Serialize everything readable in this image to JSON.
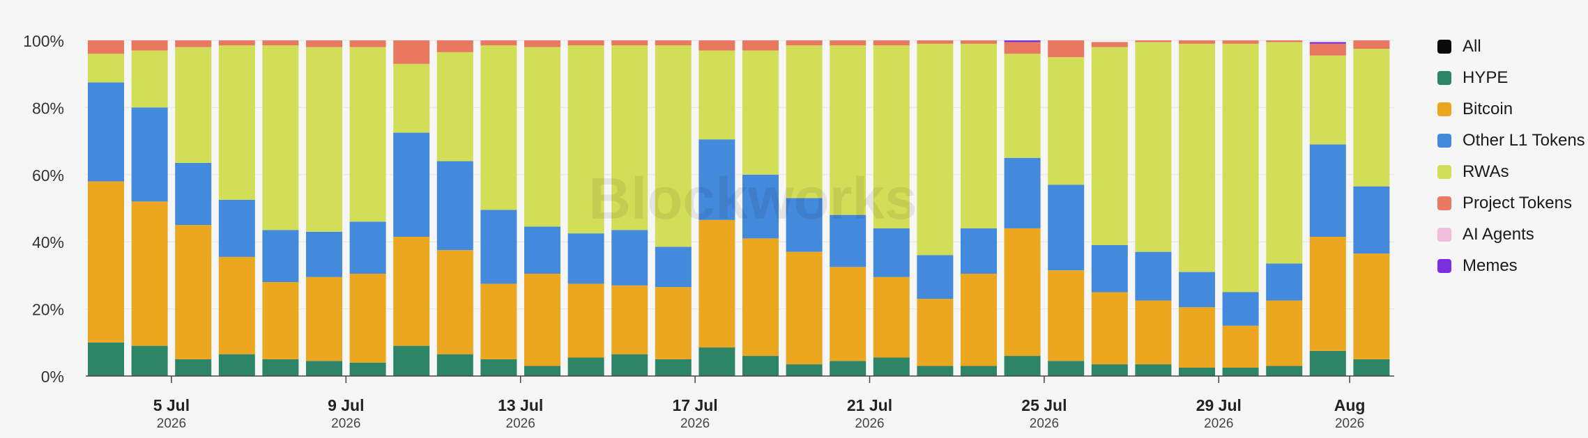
{
  "chart_data": {
    "type": "bar",
    "stacked": true,
    "normalized": true,
    "y_ticks": [
      "0%",
      "20%",
      "40%",
      "60%",
      "80%",
      "100%"
    ],
    "ylim": [
      0,
      100
    ],
    "x_ticks": [
      {
        "index": 1,
        "label": "5 Jul",
        "year": "2026"
      },
      {
        "index": 5,
        "label": "9 Jul",
        "year": "2026"
      },
      {
        "index": 9,
        "label": "13 Jul",
        "year": "2026"
      },
      {
        "index": 13,
        "label": "17 Jul",
        "year": "2026"
      },
      {
        "index": 17,
        "label": "21 Jul",
        "year": "2026"
      },
      {
        "index": 21,
        "label": "25 Jul",
        "year": "2026"
      },
      {
        "index": 25,
        "label": "29 Jul",
        "year": "2026"
      },
      {
        "index": 28,
        "label": "Aug",
        "year": "2026"
      }
    ],
    "categories": [
      "3 Jul 2026",
      "4 Jul 2026",
      "5 Jul 2026",
      "6 Jul 2026",
      "7 Jul 2026",
      "8 Jul 2026",
      "9 Jul 2026",
      "10 Jul 2026",
      "11 Jul 2026",
      "12 Jul 2026",
      "13 Jul 2026",
      "14 Jul 2026",
      "15 Jul 2026",
      "16 Jul 2026",
      "17 Jul 2026",
      "18 Jul 2026",
      "19 Jul 2026",
      "20 Jul 2026",
      "21 Jul 2026",
      "22 Jul 2026",
      "23 Jul 2026",
      "24 Jul 2026",
      "25 Jul 2026",
      "26 Jul 2026",
      "27 Jul 2026",
      "28 Jul 2026",
      "29 Jul 2026",
      "30 Jul 2026",
      "31 Jul 2026",
      "1 Aug 2026",
      "2 Aug 2026",
      "3 Aug 2026"
    ],
    "series": [
      {
        "name": "HYPE",
        "color": "#2e8467",
        "values": [
          10,
          9,
          5,
          6.5,
          5,
          4.5,
          4,
          9,
          6.5,
          5,
          3,
          5.5,
          6.5,
          5,
          8.5,
          6,
          3.5,
          4.5,
          5.5,
          3,
          3,
          6,
          4.5,
          3.5,
          3.5,
          2.5,
          2.5,
          3,
          7.5,
          5,
          0,
          0
        ]
      },
      {
        "name": "Bitcoin",
        "color": "#eaa71f",
        "values": [
          48,
          43,
          40,
          29,
          23,
          25,
          26.5,
          32.5,
          31,
          22.5,
          27.5,
          22,
          20.5,
          21.5,
          38,
          35,
          33.5,
          28,
          24,
          20,
          27.5,
          38,
          27,
          21.5,
          19,
          18,
          12.5,
          19.5,
          34,
          31.5,
          0,
          0
        ]
      },
      {
        "name": "Other L1 Tokens",
        "color": "#4389dc",
        "values": [
          29.5,
          28,
          18.5,
          17,
          15.5,
          13.5,
          15.5,
          31,
          26.5,
          22,
          14,
          15,
          16.5,
          12,
          24,
          19,
          16,
          15.5,
          14.5,
          13,
          13.5,
          21,
          25.5,
          14,
          14.5,
          10.5,
          10,
          11,
          27.5,
          20,
          0,
          0
        ]
      },
      {
        "name": "RWAs",
        "color": "#d3de58",
        "values": [
          8.5,
          17,
          34.5,
          46,
          55,
          55,
          52,
          20.5,
          32.5,
          49,
          53.5,
          56,
          55,
          60,
          26.5,
          37,
          45.5,
          50.5,
          54.5,
          63,
          55,
          31,
          38,
          59,
          62.5,
          68,
          74,
          66,
          26.5,
          41,
          0,
          0
        ]
      },
      {
        "name": "Project Tokens",
        "color": "#e8785f",
        "values": [
          4,
          3,
          2,
          1.5,
          1.5,
          2,
          2,
          7,
          3.5,
          1.5,
          2,
          1.5,
          1.5,
          1.5,
          3,
          3,
          1.5,
          1.5,
          1.5,
          1,
          1,
          3.5,
          5,
          1.5,
          0.5,
          1,
          1,
          0.5,
          3.5,
          2.5,
          0,
          0
        ]
      },
      {
        "name": "AI Agents",
        "color": "#efbfdc",
        "values": [
          0,
          0,
          0,
          0,
          0,
          0,
          0,
          0,
          0,
          0,
          0,
          0,
          0,
          0,
          0,
          0,
          0,
          0,
          0,
          0,
          0,
          0,
          0,
          0,
          0,
          0,
          0,
          0,
          0,
          0,
          0,
          0
        ]
      },
      {
        "name": "Memes",
        "color": "#7d2fe0",
        "values": [
          0,
          0,
          0,
          0,
          0,
          0,
          0,
          0,
          0,
          0,
          0,
          0,
          0,
          0,
          0,
          0,
          0,
          0,
          0,
          0,
          0,
          0.5,
          0,
          0,
          0,
          0,
          0,
          0,
          0.5,
          0,
          0,
          0
        ]
      }
    ]
  },
  "legend": [
    {
      "label": "All",
      "color": "#0a0a0a"
    },
    {
      "label": "HYPE",
      "color": "#2e8467"
    },
    {
      "label": "Bitcoin",
      "color": "#eaa71f"
    },
    {
      "label": "Other L1 Tokens",
      "color": "#4389dc"
    },
    {
      "label": "RWAs",
      "color": "#d3de58"
    },
    {
      "label": "Project Tokens",
      "color": "#e8785f"
    },
    {
      "label": "AI Agents",
      "color": "#efbfdc"
    },
    {
      "label": "Memes",
      "color": "#7d2fe0"
    }
  ],
  "watermark": "Blockworks"
}
